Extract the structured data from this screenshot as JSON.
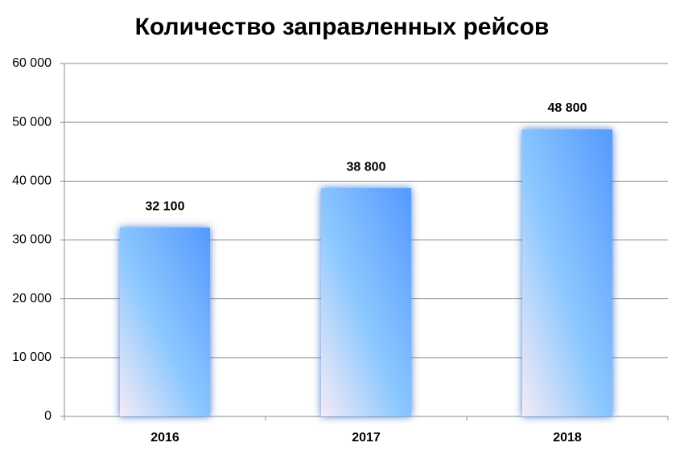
{
  "chart_data": {
    "type": "bar",
    "title": "Количество заправленных рейсов",
    "categories": [
      "2016",
      "2017",
      "2018"
    ],
    "values": [
      32100,
      38800,
      48800
    ],
    "value_labels": [
      "32 100",
      "38 800",
      "48 800"
    ],
    "color": "#5599ff",
    "ylim": [
      0,
      60000
    ],
    "yticks": [
      0,
      {
        "value": 10000,
        "label": "10 000"
      },
      {
        "value": 20000,
        "label": "20 000"
      },
      {
        "value": 30000,
        "label": "30 000"
      },
      {
        "value": 40000,
        "label": "40 000"
      },
      {
        "value": 50000,
        "label": "50 000"
      },
      {
        "value": 60000,
        "label": "60 000"
      }
    ],
    "grid": true
  }
}
